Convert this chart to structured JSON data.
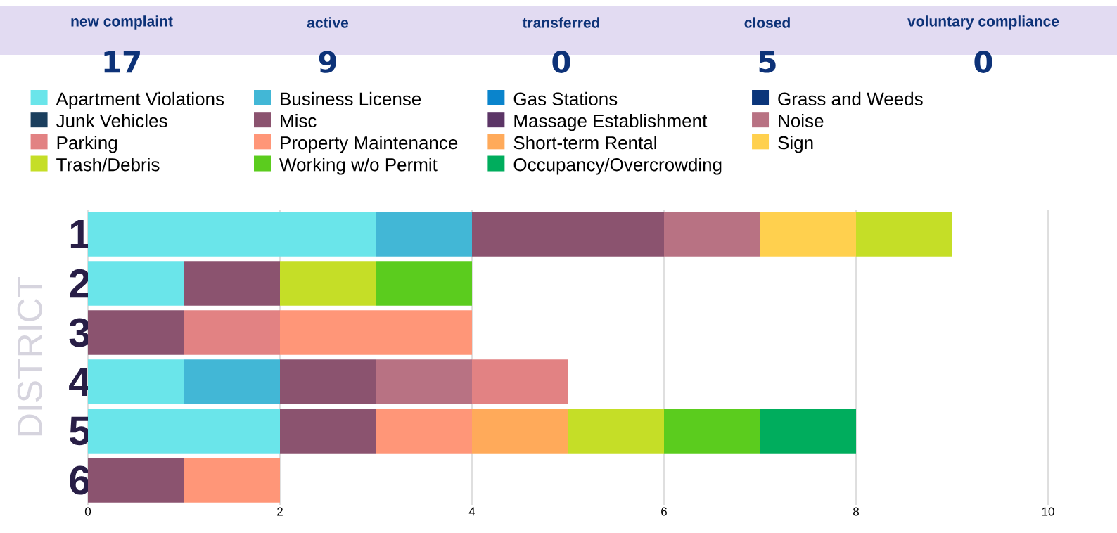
{
  "chart_data": {
    "type": "bar",
    "orientation": "horizontal",
    "stacked": true,
    "categories": [
      "1",
      "2",
      "3",
      "4",
      "5",
      "6"
    ],
    "ylabel": "DISTRICT",
    "series": [
      {
        "name": "Apartment Violations",
        "color": "#6ae5ea",
        "values": [
          3,
          1,
          null,
          1,
          2,
          null
        ]
      },
      {
        "name": "Business License",
        "color": "#42b7d6",
        "values": [
          1,
          null,
          null,
          1,
          null,
          null
        ]
      },
      {
        "name": "Gas Stations",
        "color": "#0a84cc",
        "values": [
          null,
          null,
          null,
          null,
          null,
          null
        ]
      },
      {
        "name": "Grass and Weeds",
        "color": "#0a357a",
        "values": [
          null,
          null,
          null,
          null,
          null,
          null
        ]
      },
      {
        "name": "Junk Vehicles",
        "color": "#1b3f5e",
        "values": [
          null,
          null,
          null,
          null,
          null,
          null
        ]
      },
      {
        "name": "Misc",
        "color": "#8b536f",
        "values": [
          2,
          1,
          1,
          1,
          1,
          1
        ]
      },
      {
        "name": "Massage Establishment",
        "color": "#5c3566",
        "values": [
          null,
          null,
          null,
          null,
          null,
          null
        ]
      },
      {
        "name": "Noise",
        "color": "#b87283",
        "values": [
          1,
          null,
          null,
          1,
          null,
          null
        ]
      },
      {
        "name": "Parking",
        "color": "#e28283",
        "values": [
          null,
          null,
          1,
          1,
          null,
          null
        ]
      },
      {
        "name": "Property Maintenance",
        "color": "#ff9678",
        "values": [
          null,
          null,
          2,
          null,
          1,
          1
        ]
      },
      {
        "name": "Short-term Rental",
        "color": "#ffaa5a",
        "values": [
          null,
          null,
          null,
          null,
          1,
          null
        ]
      },
      {
        "name": "Sign",
        "color": "#ffd04e",
        "values": [
          1,
          null,
          null,
          null,
          null,
          null
        ]
      },
      {
        "name": "Trash/Debris",
        "color": "#c5de27",
        "values": [
          1,
          1,
          null,
          null,
          1,
          null
        ]
      },
      {
        "name": "Working w/o Permit",
        "color": "#5bcc1e",
        "values": [
          null,
          1,
          null,
          null,
          1,
          null
        ]
      },
      {
        "name": "Occupancy/Overcrowding",
        "color": "#00ad5d",
        "values": [
          null,
          null,
          null,
          null,
          1,
          null
        ]
      }
    ],
    "xlim": [
      0,
      10
    ],
    "xticks": [
      0,
      2,
      4,
      6,
      8,
      10
    ],
    "grid": "x",
    "legend": "top",
    "annotations": [
      "new complaint",
      "17",
      "active",
      "9",
      "transferred",
      "0",
      "closed",
      "5",
      "voluntary compliance",
      "0"
    ]
  }
}
